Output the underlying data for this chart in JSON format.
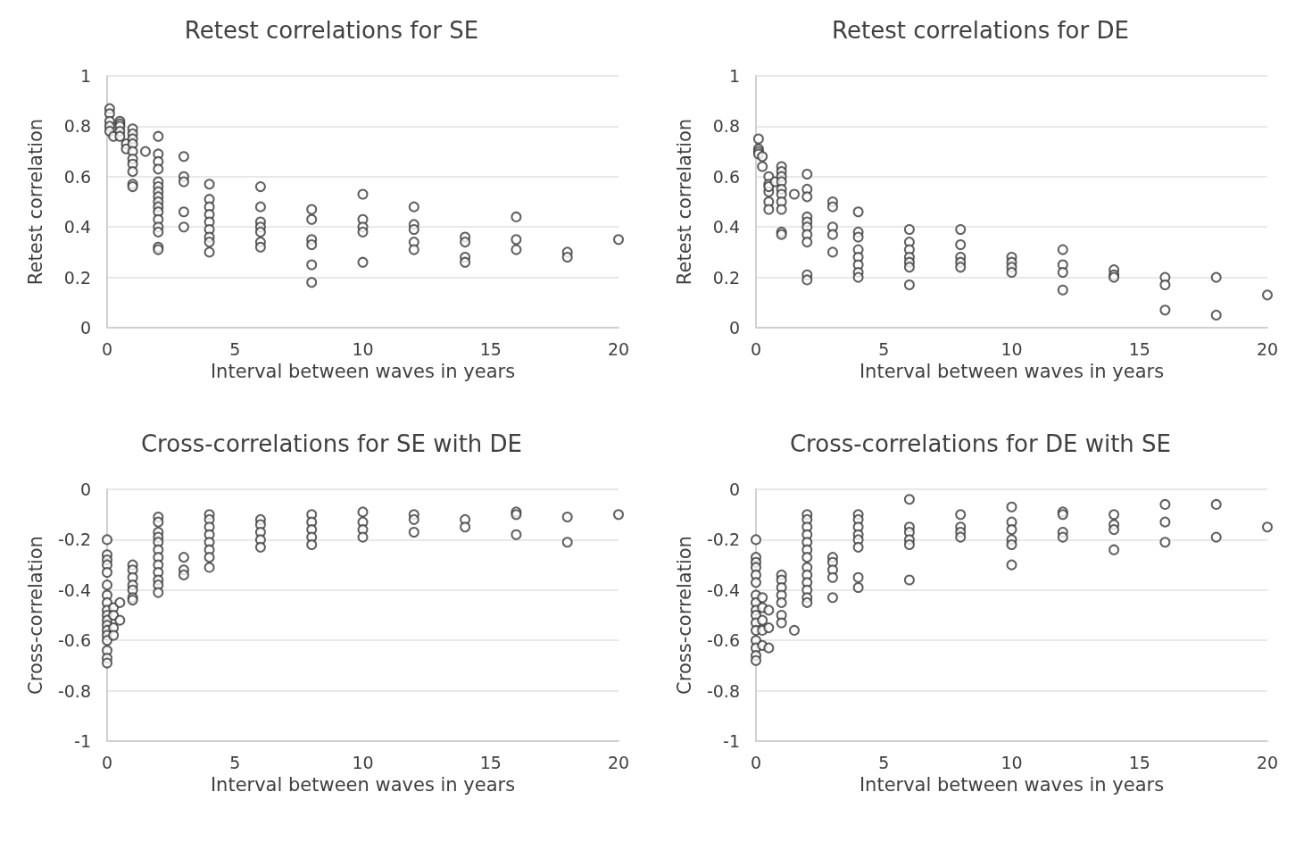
{
  "chart_data": [
    {
      "type": "scatter",
      "title": "Retest correlations for SE",
      "xlabel": "Interval between waves in years",
      "ylabel": "Retest correlation",
      "xlim": [
        0,
        20
      ],
      "xticks": [
        0,
        5,
        10,
        15,
        20
      ],
      "ylim": [
        0,
        1
      ],
      "yticks": [
        0,
        0.2,
        0.4,
        0.6,
        0.8,
        1
      ],
      "grid": "y",
      "marker": "circle",
      "series": [
        {
          "color": "#3a3a3a",
          "x": [
            0.1,
            0.1,
            0.1,
            0.1,
            0.1,
            0.25,
            0.5,
            0.5,
            0.5,
            0.5,
            0.5,
            0.75,
            0.75,
            1,
            1,
            1,
            1,
            1,
            1,
            1,
            1,
            1,
            1,
            1.5,
            2,
            2,
            2,
            2,
            2,
            2,
            2,
            2,
            2,
            2,
            2,
            2,
            2,
            2,
            2,
            2,
            3,
            3,
            3,
            3,
            3,
            4,
            4,
            4,
            4,
            4,
            4,
            4,
            4,
            4,
            6,
            6,
            6,
            6,
            6,
            6,
            6,
            8,
            8,
            8,
            8,
            8,
            8,
            10,
            10,
            10,
            10,
            10,
            12,
            12,
            12,
            12,
            12,
            14,
            14,
            14,
            14,
            16,
            16,
            16,
            18,
            18,
            20
          ],
          "values": [
            0.87,
            0.85,
            0.82,
            0.8,
            0.78,
            0.76,
            0.82,
            0.81,
            0.8,
            0.78,
            0.76,
            0.73,
            0.71,
            0.79,
            0.77,
            0.75,
            0.73,
            0.7,
            0.67,
            0.65,
            0.62,
            0.57,
            0.56,
            0.7,
            0.76,
            0.69,
            0.66,
            0.63,
            0.58,
            0.56,
            0.54,
            0.52,
            0.5,
            0.48,
            0.46,
            0.43,
            0.4,
            0.38,
            0.32,
            0.31,
            0.68,
            0.6,
            0.58,
            0.46,
            0.4,
            0.57,
            0.51,
            0.48,
            0.45,
            0.42,
            0.39,
            0.36,
            0.34,
            0.3,
            0.56,
            0.48,
            0.42,
            0.4,
            0.38,
            0.34,
            0.32,
            0.47,
            0.43,
            0.35,
            0.33,
            0.25,
            0.18,
            0.53,
            0.43,
            0.4,
            0.38,
            0.26,
            0.48,
            0.41,
            0.39,
            0.34,
            0.31,
            0.36,
            0.34,
            0.28,
            0.26,
            0.44,
            0.35,
            0.31,
            0.3,
            0.28,
            0.35
          ]
        }
      ]
    },
    {
      "type": "scatter",
      "title": "Retest correlations for DE",
      "xlabel": "Interval between waves in years",
      "ylabel": "Retest correlation",
      "xlim": [
        0,
        20
      ],
      "xticks": [
        0,
        5,
        10,
        15,
        20
      ],
      "ylim": [
        0,
        1
      ],
      "yticks": [
        0,
        0.2,
        0.4,
        0.6,
        0.8,
        1
      ],
      "grid": "y",
      "marker": "circle",
      "series": [
        {
          "color": "#3a3a3a",
          "x": [
            0.1,
            0.1,
            0.1,
            0.1,
            0.25,
            0.25,
            0.5,
            0.5,
            0.5,
            0.5,
            0.5,
            0.5,
            0.75,
            1,
            1,
            1,
            1,
            1,
            1,
            1,
            1,
            1,
            1,
            1.5,
            2,
            2,
            2,
            2,
            2,
            2,
            2,
            2,
            2,
            2,
            3,
            3,
            3,
            3,
            3,
            4,
            4,
            4,
            4,
            4,
            4,
            4,
            4,
            6,
            6,
            6,
            6,
            6,
            6,
            6,
            8,
            8,
            8,
            8,
            8,
            10,
            10,
            10,
            10,
            12,
            12,
            12,
            12,
            14,
            14,
            14,
            16,
            16,
            16,
            18,
            18,
            20
          ],
          "values": [
            0.75,
            0.71,
            0.7,
            0.69,
            0.68,
            0.64,
            0.6,
            0.57,
            0.54,
            0.5,
            0.47,
            0.56,
            0.58,
            0.64,
            0.62,
            0.6,
            0.58,
            0.55,
            0.53,
            0.5,
            0.47,
            0.38,
            0.37,
            0.53,
            0.61,
            0.55,
            0.52,
            0.44,
            0.42,
            0.4,
            0.37,
            0.34,
            0.21,
            0.19,
            0.5,
            0.48,
            0.4,
            0.37,
            0.3,
            0.46,
            0.38,
            0.36,
            0.31,
            0.28,
            0.25,
            0.22,
            0.2,
            0.39,
            0.34,
            0.31,
            0.28,
            0.26,
            0.24,
            0.17,
            0.39,
            0.33,
            0.28,
            0.26,
            0.24,
            0.28,
            0.26,
            0.24,
            0.22,
            0.31,
            0.25,
            0.22,
            0.15,
            0.23,
            0.21,
            0.2,
            0.2,
            0.17,
            0.07,
            0.2,
            0.05,
            0.13
          ]
        }
      ]
    },
    {
      "type": "scatter",
      "title": "Cross-correlations for SE with DE",
      "xlabel": "Interval between waves in years",
      "ylabel": "Cross-correlation",
      "xlim": [
        0,
        20
      ],
      "xticks": [
        0,
        5,
        10,
        15,
        20
      ],
      "ylim": [
        -1,
        0
      ],
      "yticks": [
        -1,
        -0.8,
        -0.6,
        -0.4,
        -0.2,
        0
      ],
      "grid": "y",
      "marker": "circle",
      "series": [
        {
          "color": "#3a3a3a",
          "x": [
            0,
            0,
            0,
            0,
            0,
            0,
            0,
            0,
            0,
            0,
            0,
            0,
            0,
            0,
            0,
            0,
            0,
            0,
            0.25,
            0.25,
            0.25,
            0.25,
            0.5,
            0.5,
            1,
            1,
            1,
            1,
            1,
            1,
            1,
            2,
            2,
            2,
            2,
            2,
            2,
            2,
            2,
            2,
            2,
            2,
            2,
            3,
            3,
            3,
            4,
            4,
            4,
            4,
            4,
            4,
            4,
            4,
            6,
            6,
            6,
            6,
            6,
            8,
            8,
            8,
            8,
            8,
            10,
            10,
            10,
            10,
            12,
            12,
            12,
            14,
            14,
            16,
            16,
            16,
            18,
            18,
            20
          ],
          "values": [
            -0.2,
            -0.26,
            -0.28,
            -0.3,
            -0.33,
            -0.38,
            -0.42,
            -0.45,
            -0.48,
            -0.5,
            -0.52,
            -0.54,
            -0.56,
            -0.58,
            -0.6,
            -0.64,
            -0.67,
            -0.69,
            -0.47,
            -0.5,
            -0.55,
            -0.58,
            -0.45,
            -0.52,
            -0.3,
            -0.32,
            -0.35,
            -0.38,
            -0.4,
            -0.43,
            -0.44,
            -0.11,
            -0.13,
            -0.17,
            -0.19,
            -0.21,
            -0.24,
            -0.27,
            -0.3,
            -0.33,
            -0.36,
            -0.38,
            -0.41,
            -0.27,
            -0.32,
            -0.34,
            -0.1,
            -0.12,
            -0.15,
            -0.18,
            -0.21,
            -0.24,
            -0.27,
            -0.31,
            -0.12,
            -0.14,
            -0.17,
            -0.2,
            -0.23,
            -0.1,
            -0.13,
            -0.16,
            -0.19,
            -0.22,
            -0.09,
            -0.13,
            -0.16,
            -0.19,
            -0.1,
            -0.12,
            -0.17,
            -0.12,
            -0.15,
            -0.09,
            -0.1,
            -0.18,
            -0.11,
            -0.21,
            -0.1
          ]
        }
      ]
    },
    {
      "type": "scatter",
      "title": "Cross-correlations for DE with SE",
      "xlabel": "Interval between waves in years",
      "ylabel": "Cross-correlation",
      "xlim": [
        0,
        20
      ],
      "xticks": [
        0,
        5,
        10,
        15,
        20
      ],
      "ylim": [
        -1,
        0
      ],
      "yticks": [
        -1,
        -0.8,
        -0.6,
        -0.4,
        -0.2,
        0
      ],
      "grid": "y",
      "marker": "circle",
      "series": [
        {
          "color": "#3a3a3a",
          "x": [
            0,
            0,
            0,
            0,
            0,
            0,
            0,
            0,
            0,
            0,
            0,
            0,
            0,
            0,
            0,
            0,
            0.25,
            0.25,
            0.25,
            0.25,
            0.25,
            0.5,
            0.5,
            0.5,
            1,
            1,
            1,
            1,
            1,
            1,
            1,
            1.5,
            2,
            2,
            2,
            2,
            2,
            2,
            2,
            2,
            2,
            2,
            2,
            2,
            2,
            3,
            3,
            3,
            3,
            3,
            4,
            4,
            4,
            4,
            4,
            4,
            4,
            4,
            6,
            6,
            6,
            6,
            6,
            6,
            8,
            8,
            8,
            8,
            10,
            10,
            10,
            10,
            10,
            10,
            12,
            12,
            12,
            12,
            14,
            14,
            14,
            14,
            16,
            16,
            16,
            18,
            18,
            20
          ],
          "values": [
            -0.2,
            -0.27,
            -0.29,
            -0.31,
            -0.34,
            -0.37,
            -0.42,
            -0.45,
            -0.48,
            -0.5,
            -0.53,
            -0.56,
            -0.6,
            -0.63,
            -0.66,
            -0.68,
            -0.43,
            -0.47,
            -0.52,
            -0.56,
            -0.62,
            -0.48,
            -0.55,
            -0.63,
            -0.34,
            -0.36,
            -0.39,
            -0.42,
            -0.45,
            -0.5,
            -0.53,
            -0.56,
            -0.1,
            -0.12,
            -0.15,
            -0.18,
            -0.21,
            -0.24,
            -0.27,
            -0.31,
            -0.34,
            -0.37,
            -0.4,
            -0.43,
            -0.45,
            -0.27,
            -0.29,
            -0.32,
            -0.35,
            -0.43,
            -0.1,
            -0.12,
            -0.15,
            -0.18,
            -0.2,
            -0.23,
            -0.35,
            -0.39,
            -0.04,
            -0.15,
            -0.17,
            -0.2,
            -0.22,
            -0.36,
            -0.1,
            -0.15,
            -0.17,
            -0.19,
            -0.07,
            -0.13,
            -0.16,
            -0.2,
            -0.22,
            -0.3,
            -0.09,
            -0.1,
            -0.17,
            -0.19,
            -0.1,
            -0.14,
            -0.16,
            -0.24,
            -0.06,
            -0.13,
            -0.21,
            -0.06,
            -0.19,
            -0.15
          ]
        }
      ]
    }
  ]
}
